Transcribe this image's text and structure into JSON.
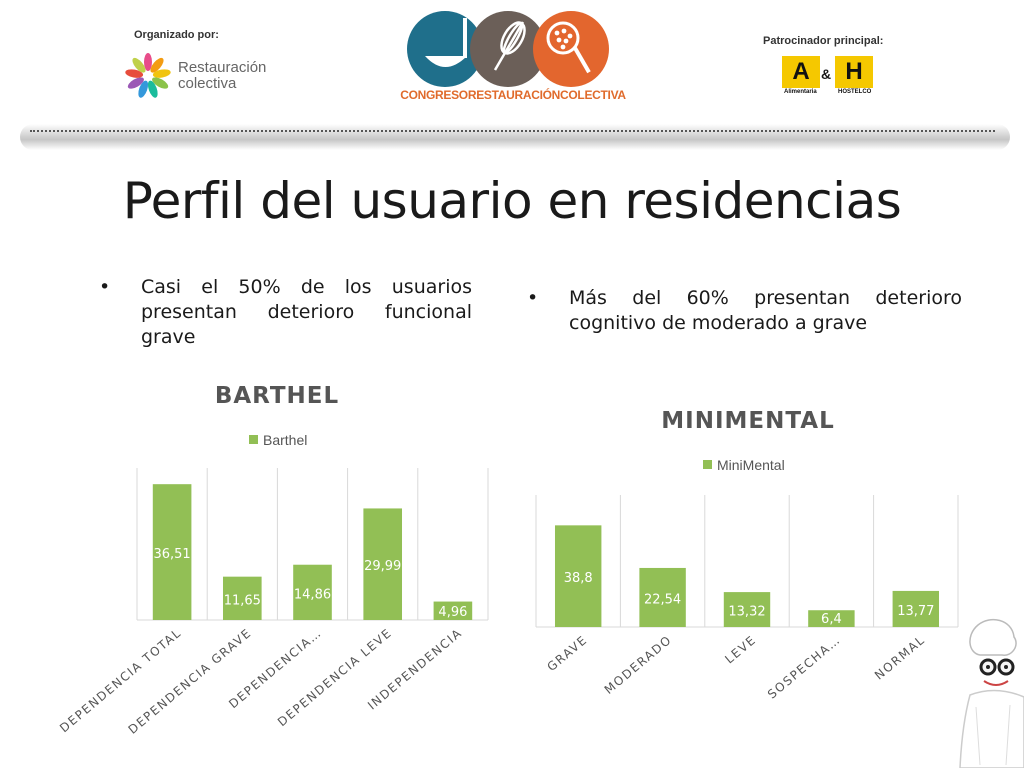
{
  "header": {
    "organizer_label": "Organizado por:",
    "organizer_logo_text_1": "Restauración",
    "organizer_logo_text_2": "colectiva",
    "event_name": "CONGRESORESTAURACIÓNCOLECTIVA",
    "sponsor_label": "Patrocinador principal:",
    "sponsor_logo_1": "A",
    "sponsor_logo_1_sub": "Alimentaria",
    "sponsor_logo_amp": "&",
    "sponsor_logo_2": "H",
    "sponsor_logo_2_sub": "HOSTELCO"
  },
  "title": "Perfil del usuario en residencias",
  "bullets": [
    {
      "marker": "•",
      "text": "Casi el 50% de los usuarios presentan deterioro funcional grave"
    },
    {
      "marker": "•",
      "text": "Más del 60% presentan deterioro cognitivo de moderado a grave"
    }
  ],
  "colors": {
    "bar": "#92bf55",
    "grid": "#d9d9d9",
    "text": "#555555",
    "label": "#ffffff"
  },
  "chart_data": [
    {
      "type": "bar",
      "title": "BARTHEL",
      "categories": [
        "DEPENDENCIA TOTAL",
        "DEPENDENCIA GRAVE",
        "DEPENDENCIA…",
        "DEPENDENCIA LEVE",
        "INDEPENDENCIA"
      ],
      "series": [
        {
          "name": "Barthel",
          "values": [
            36.51,
            11.65,
            14.86,
            29.99,
            4.96
          ]
        }
      ],
      "data_labels": [
        "36,51",
        "11,65",
        "14,86",
        "29,99",
        "4,96"
      ],
      "xlabel": "",
      "ylabel": "",
      "ylim": [
        0,
        40
      ],
      "legend": "top",
      "grid": "vertical category separators"
    },
    {
      "type": "bar",
      "title": "MINIMENTAL",
      "categories": [
        "GRAVE",
        "MODERADO",
        "LEVE",
        "SOSPECHA…",
        "NORMAL"
      ],
      "series": [
        {
          "name": "MiniMental",
          "values": [
            38.8,
            22.54,
            13.32,
            6.4,
            13.77
          ]
        }
      ],
      "data_labels": [
        "38,8",
        "22,54",
        "13,32",
        "6,4",
        "13,77"
      ],
      "xlabel": "",
      "ylabel": "",
      "ylim": [
        0,
        40
      ],
      "legend": "top",
      "grid": "vertical category separators"
    }
  ]
}
